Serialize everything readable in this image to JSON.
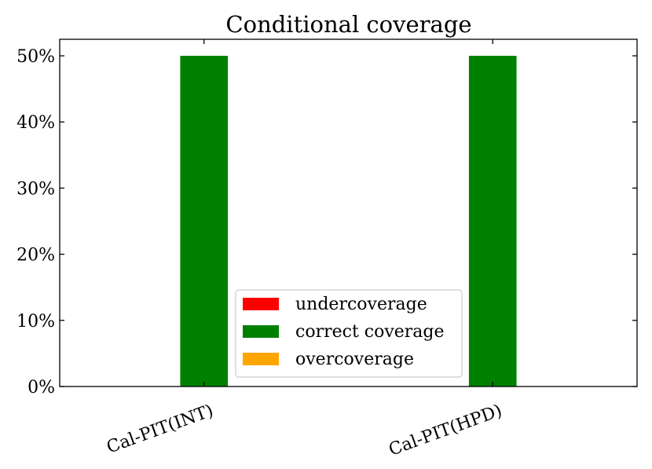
{
  "chart_data": {
    "type": "bar",
    "title": "Conditional coverage",
    "xlabel": "",
    "ylabel": "",
    "categories": [
      "Cal-PIT(INT)",
      "Cal-PIT(HPD)"
    ],
    "series": [
      {
        "name": "undercoverage",
        "color": "#ff0000",
        "values": [
          0,
          0
        ]
      },
      {
        "name": "correct coverage",
        "color": "#008000",
        "values": [
          50,
          50
        ]
      },
      {
        "name": "overcoverage",
        "color": "#ffa500",
        "values": [
          0,
          0
        ]
      }
    ],
    "ylim": [
      0,
      52.5
    ],
    "yticks": [
      0,
      10,
      20,
      30,
      40,
      50
    ],
    "ytick_labels": [
      "0%",
      "10%",
      "20%",
      "30%",
      "40%",
      "50%"
    ],
    "grid": false,
    "legend_position": "lower-center"
  }
}
